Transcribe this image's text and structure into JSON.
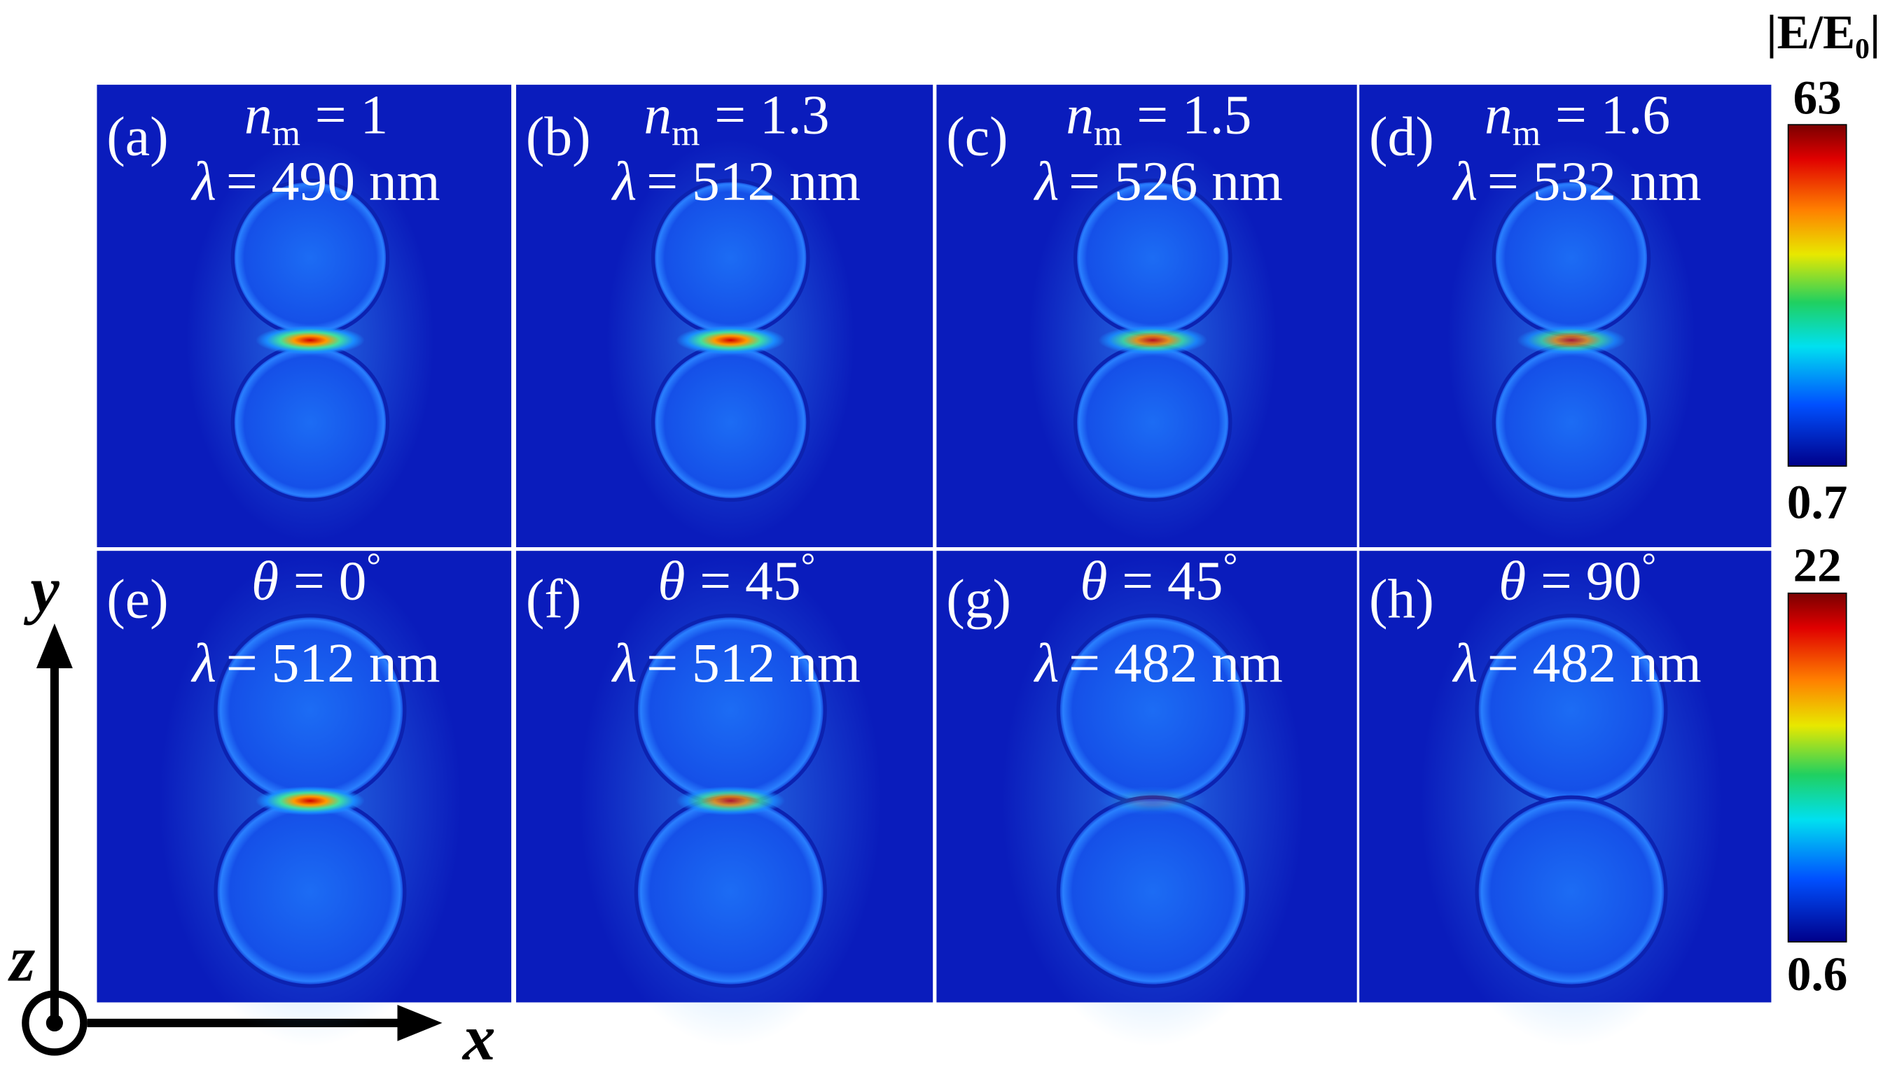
{
  "panels": [
    {
      "label": "(a)",
      "line1": {
        "symbol": "n",
        "subscript": "m",
        "text": "= 1"
      },
      "line2": {
        "symbol": "λ",
        "text": "= 490 nm"
      }
    },
    {
      "label": "(b)",
      "line1": {
        "symbol": "n",
        "subscript": "m",
        "text": "= 1.3"
      },
      "line2": {
        "symbol": "λ",
        "text": "= 512 nm"
      }
    },
    {
      "label": "(c)",
      "line1": {
        "symbol": "n",
        "subscript": "m",
        "text": "= 1.5"
      },
      "line2": {
        "symbol": "λ",
        "text": "= 526 nm"
      }
    },
    {
      "label": "(d)",
      "line1": {
        "symbol": "n",
        "subscript": "m",
        "text": "= 1.6"
      },
      "line2": {
        "symbol": "λ",
        "text": "= 532 nm"
      }
    },
    {
      "label": "(e)",
      "line1": {
        "symbol": "θ",
        "text": "= 0",
        "superscript": "°"
      },
      "line2": {
        "symbol": "λ",
        "text": "= 512 nm"
      }
    },
    {
      "label": "(f)",
      "line1": {
        "symbol": "θ",
        "text": "= 45",
        "superscript": "°"
      },
      "line2": {
        "symbol": "λ",
        "text": "= 512 nm"
      }
    },
    {
      "label": "(g)",
      "line1": {
        "symbol": "θ",
        "text": "= 45",
        "superscript": "°"
      },
      "line2": {
        "symbol": "λ",
        "text": "= 482 nm"
      }
    },
    {
      "label": "(h)",
      "line1": {
        "symbol": "θ",
        "text": "= 90",
        "superscript": "°"
      },
      "line2": {
        "symbol": "λ",
        "text": "= 482 nm"
      }
    }
  ],
  "colorbar_title": {
    "text": "|E/E",
    "subscript": "0",
    "closing": "|"
  },
  "colorbars": [
    {
      "max": 63,
      "min": 0.7
    },
    {
      "max": 22,
      "min": 0.6
    }
  ],
  "axes": {
    "y": "y",
    "z": "z",
    "x": "x"
  }
}
